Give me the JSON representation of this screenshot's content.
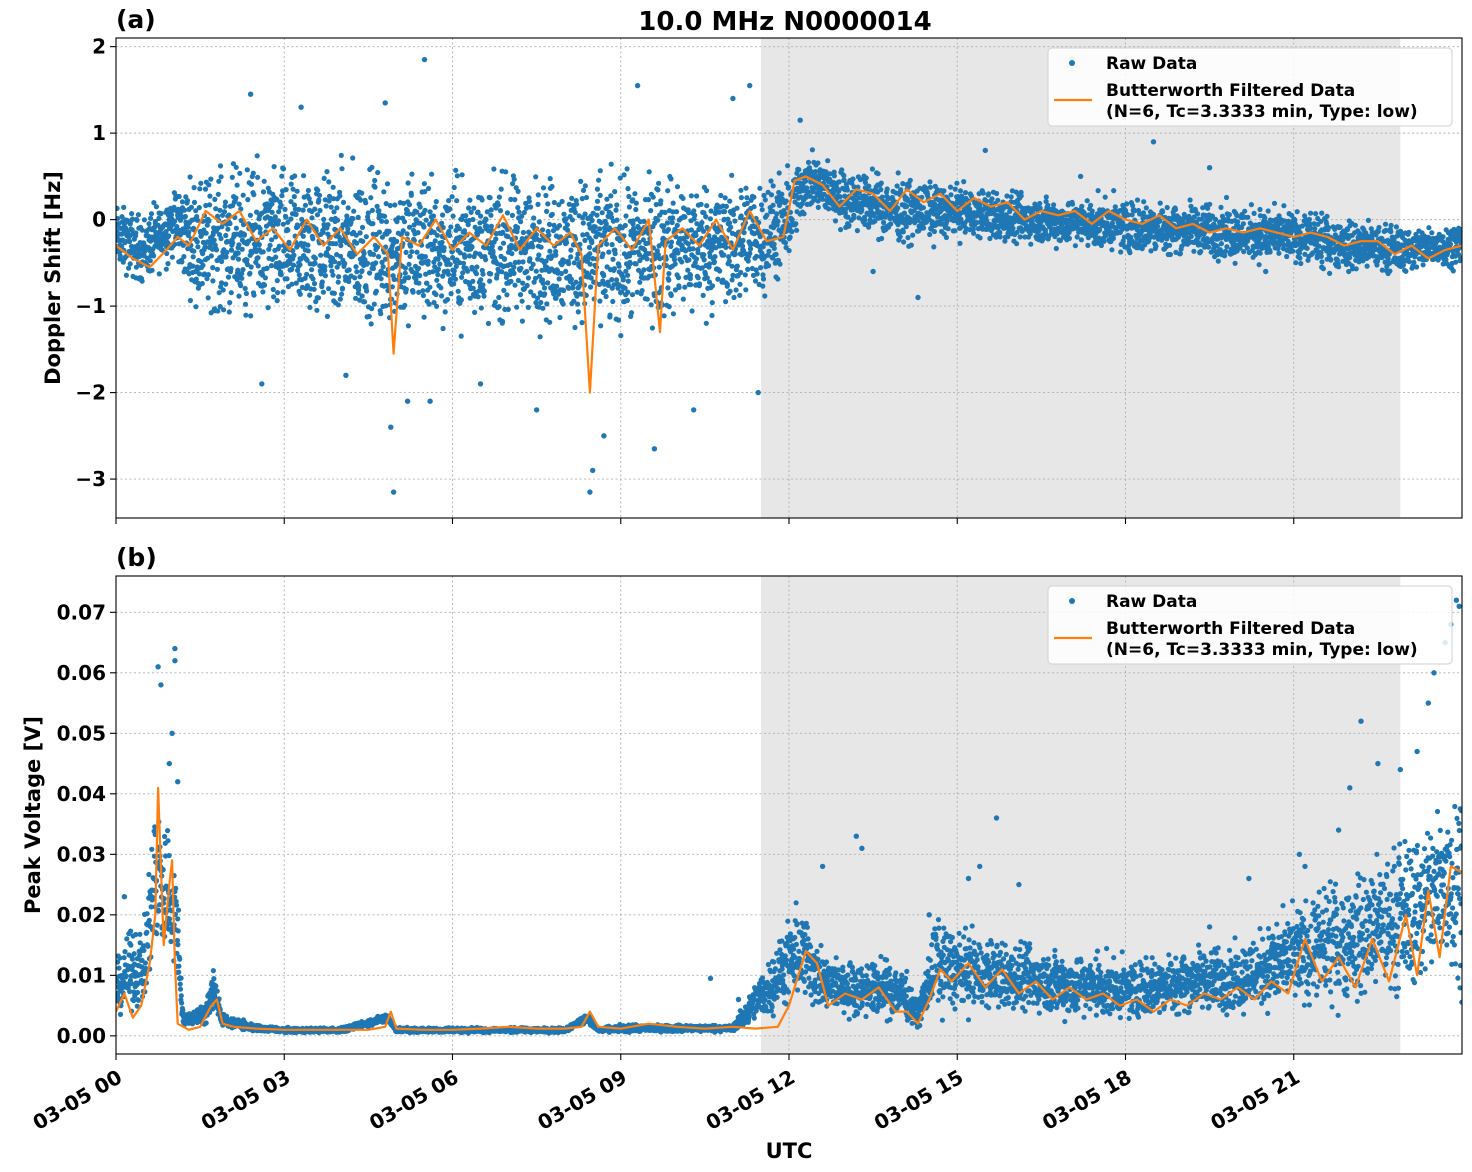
{
  "title": "10.0 MHz N0000014",
  "xlabel": "UTC",
  "x_tick_labels": [
    "03-05 00",
    "03-05 03",
    "03-05 06",
    "03-05 09",
    "03-05 12",
    "03-05 15",
    "03-05 18",
    "03-05 21"
  ],
  "colors": {
    "raw": "#1f77b4",
    "filtered": "#ff7f0e",
    "shade": "#e7e7e7"
  },
  "legend": {
    "raw_label": "Raw Data",
    "filtered_line1": "Butterworth Filtered Data",
    "filtered_line2": "(N=6, Tc=3.3333 min, Type: low)"
  },
  "chart_data": [
    {
      "type": "scatter",
      "panel_label": "(a)",
      "ylabel": "Doppler Shift [Hz]",
      "xlim_hours": [
        0,
        24
      ],
      "ylim": [
        -3.45,
        2.1
      ],
      "y_ticks": [
        -3,
        -2,
        -1,
        0,
        1,
        2
      ],
      "y_tick_labels": [
        "−3",
        "−2",
        "−1",
        "0",
        "1",
        "2"
      ],
      "grid": true,
      "legend_position": "top-right",
      "shaded_interval_hours": [
        11.5,
        22.9
      ],
      "series": [
        {
          "name": "Raw Data",
          "style": "points",
          "envelope": {
            "x": [
              0,
              0.5,
              1,
              1.5,
              2,
              3,
              4,
              5,
              6,
              7,
              8,
              9,
              10,
              11,
              11.9,
              12.3,
              13,
              14,
              15,
              16,
              17,
              18,
              19,
              20,
              21,
              22,
              23,
              24
            ],
            "low": [
              -0.7,
              -0.9,
              -0.6,
              -1.3,
              -1.4,
              -1.5,
              -1.5,
              -1.6,
              -1.5,
              -1.5,
              -1.5,
              -1.6,
              -1.4,
              -1.3,
              -0.9,
              0.0,
              -0.2,
              -0.4,
              -0.3,
              -0.4,
              -0.4,
              -0.5,
              -0.5,
              -0.6,
              -0.6,
              -0.7,
              -0.7,
              -0.6
            ],
            "high": [
              0.3,
              0.2,
              0.5,
              0.8,
              0.9,
              0.9,
              0.9,
              0.9,
              0.8,
              0.8,
              0.8,
              0.8,
              0.8,
              0.7,
              0.7,
              0.9,
              0.7,
              0.6,
              0.5,
              0.4,
              0.35,
              0.35,
              0.3,
              0.3,
              0.2,
              0.1,
              0.0,
              0.05
            ]
          },
          "outliers": [
            [
              2.4,
              1.45
            ],
            [
              2.6,
              -1.9
            ],
            [
              3.3,
              1.3
            ],
            [
              4.1,
              -1.8
            ],
            [
              4.8,
              1.35
            ],
            [
              4.95,
              -3.15
            ],
            [
              4.9,
              -2.4
            ],
            [
              5.2,
              -2.1
            ],
            [
              5.5,
              1.85
            ],
            [
              5.6,
              -2.1
            ],
            [
              6.5,
              -1.9
            ],
            [
              7.5,
              -2.2
            ],
            [
              8.5,
              -2.9
            ],
            [
              8.45,
              -3.15
            ],
            [
              8.7,
              -2.5
            ],
            [
              9.6,
              -2.65
            ],
            [
              9.3,
              1.55
            ],
            [
              10.3,
              -2.2
            ],
            [
              11.0,
              1.4
            ],
            [
              11.3,
              1.55
            ],
            [
              11.45,
              -2.0
            ],
            [
              12.2,
              1.15
            ],
            [
              13.5,
              -0.6
            ],
            [
              14.3,
              -0.9
            ],
            [
              15.5,
              0.8
            ],
            [
              17.2,
              0.5
            ],
            [
              18.5,
              0.9
            ],
            [
              19.5,
              0.6
            ],
            [
              20.5,
              -0.6
            ],
            [
              21.5,
              -0.55
            ]
          ]
        },
        {
          "name": "Butterworth Filtered Data",
          "style": "line",
          "x": [
            0,
            0.3,
            0.6,
            0.9,
            1.1,
            1.3,
            1.6,
            1.9,
            2.2,
            2.5,
            2.8,
            3.1,
            3.4,
            3.7,
            4.0,
            4.3,
            4.6,
            4.85,
            4.95,
            5.1,
            5.4,
            5.7,
            6.0,
            6.3,
            6.6,
            6.9,
            7.2,
            7.5,
            7.8,
            8.1,
            8.3,
            8.45,
            8.6,
            8.9,
            9.2,
            9.5,
            9.7,
            9.8,
            10.1,
            10.4,
            10.7,
            11.0,
            11.3,
            11.6,
            11.9,
            12.1,
            12.3,
            12.6,
            12.9,
            13.2,
            13.5,
            13.8,
            14.1,
            14.4,
            14.7,
            15.0,
            15.3,
            15.6,
            15.9,
            16.2,
            16.5,
            16.8,
            17.1,
            17.4,
            17.7,
            18.0,
            18.3,
            18.6,
            18.9,
            19.2,
            19.5,
            19.8,
            20.1,
            20.4,
            20.7,
            21.0,
            21.3,
            21.6,
            21.9,
            22.2,
            22.5,
            22.8,
            23.1,
            23.4,
            23.7,
            24.0
          ],
          "y": [
            -0.3,
            -0.45,
            -0.55,
            -0.35,
            -0.2,
            -0.3,
            0.1,
            -0.05,
            0.1,
            -0.25,
            -0.1,
            -0.35,
            0.0,
            -0.3,
            -0.1,
            -0.4,
            -0.2,
            -0.4,
            -1.55,
            -0.2,
            -0.3,
            0.0,
            -0.35,
            -0.15,
            -0.3,
            0.05,
            -0.35,
            -0.1,
            -0.3,
            -0.15,
            -0.4,
            -2.0,
            -0.3,
            -0.1,
            -0.35,
            0.0,
            -1.3,
            -0.25,
            -0.1,
            -0.3,
            0.0,
            -0.35,
            0.1,
            -0.25,
            -0.2,
            0.45,
            0.5,
            0.4,
            0.15,
            0.35,
            0.3,
            0.1,
            0.35,
            0.2,
            0.3,
            0.1,
            0.25,
            0.15,
            0.2,
            0.0,
            0.1,
            0.05,
            0.1,
            -0.05,
            0.1,
            0.0,
            -0.05,
            0.05,
            -0.1,
            -0.05,
            -0.15,
            -0.1,
            -0.15,
            -0.1,
            -0.15,
            -0.2,
            -0.15,
            -0.2,
            -0.3,
            -0.25,
            -0.25,
            -0.4,
            -0.3,
            -0.45,
            -0.35,
            -0.3
          ]
        }
      ]
    },
    {
      "type": "scatter",
      "panel_label": "(b)",
      "ylabel": "Peak Voltage [V]",
      "xlim_hours": [
        0,
        24
      ],
      "ylim": [
        -0.003,
        0.076
      ],
      "y_ticks": [
        0.0,
        0.01,
        0.02,
        0.03,
        0.04,
        0.05,
        0.06,
        0.07
      ],
      "y_tick_labels": [
        "0.00",
        "0.01",
        "0.02",
        "0.03",
        "0.04",
        "0.05",
        "0.06",
        "0.07"
      ],
      "grid": true,
      "legend_position": "top-right",
      "shaded_interval_hours": [
        11.5,
        22.9
      ],
      "series": [
        {
          "name": "Raw Data",
          "style": "points",
          "envelope": {
            "x": [
              0,
              0.3,
              0.5,
              0.7,
              0.9,
              1.05,
              1.2,
              1.6,
              1.75,
              1.9,
              2.5,
              3,
              4,
              4.85,
              5.0,
              6,
              7,
              8,
              8.4,
              8.6,
              9,
              10,
              11,
              12.2,
              12.35,
              12.6,
              13,
              14,
              14.3,
              14.6,
              15,
              16,
              17,
              18,
              19,
              20,
              21,
              22,
              22.8,
              23.3,
              24
            ],
            "low": [
              0.002,
              0.002,
              0.003,
              0.01,
              0.008,
              0.003,
              0.0015,
              0.0015,
              0.003,
              0.001,
              0.0005,
              0.0004,
              0.0004,
              0.002,
              0.0004,
              0.0004,
              0.0004,
              0.0004,
              0.002,
              0.0004,
              0.0004,
              0.0005,
              0.0005,
              0.003,
              0.003,
              0.002,
              0.002,
              0.001,
              0.001,
              0.002,
              0.002,
              0.002,
              0.001,
              0.001,
              0.002,
              0.002,
              0.002,
              0.002,
              0.003,
              0.004,
              0.004
            ],
            "high": [
              0.014,
              0.02,
              0.02,
              0.045,
              0.04,
              0.038,
              0.004,
              0.006,
              0.013,
              0.004,
              0.002,
              0.0015,
              0.0015,
              0.004,
              0.0015,
              0.0015,
              0.0015,
              0.0015,
              0.004,
              0.0015,
              0.002,
              0.002,
              0.002,
              0.025,
              0.022,
              0.015,
              0.014,
              0.014,
              0.006,
              0.022,
              0.02,
              0.017,
              0.016,
              0.014,
              0.016,
              0.017,
              0.024,
              0.03,
              0.035,
              0.04,
              0.05
            ]
          },
          "outliers": [
            [
              0.15,
              0.023
            ],
            [
              0.75,
              0.061
            ],
            [
              0.8,
              0.058
            ],
            [
              1.05,
              0.064
            ],
            [
              1.05,
              0.062
            ],
            [
              1.0,
              0.05
            ],
            [
              0.95,
              0.045
            ],
            [
              1.1,
              0.042
            ],
            [
              10.6,
              0.0095
            ],
            [
              11.1,
              0.006
            ],
            [
              12.6,
              0.028
            ],
            [
              13.2,
              0.033
            ],
            [
              13.3,
              0.031
            ],
            [
              14.5,
              0.02
            ],
            [
              15.2,
              0.026
            ],
            [
              15.4,
              0.028
            ],
            [
              15.7,
              0.036
            ],
            [
              16.1,
              0.025
            ],
            [
              17.5,
              0.014
            ],
            [
              19.5,
              0.018
            ],
            [
              20.2,
              0.026
            ],
            [
              21.1,
              0.03
            ],
            [
              21.2,
              0.028
            ],
            [
              21.8,
              0.034
            ],
            [
              22.0,
              0.041
            ],
            [
              22.2,
              0.052
            ],
            [
              22.5,
              0.045
            ],
            [
              22.9,
              0.044
            ],
            [
              23.2,
              0.047
            ],
            [
              23.5,
              0.06
            ],
            [
              23.7,
              0.065
            ],
            [
              23.9,
              0.072
            ],
            [
              23.95,
              0.071
            ],
            [
              23.8,
              0.068
            ],
            [
              23.4,
              0.055
            ]
          ]
        },
        {
          "name": "Butterworth Filtered Data",
          "style": "line",
          "x": [
            0,
            0.15,
            0.3,
            0.45,
            0.6,
            0.7,
            0.75,
            0.85,
            0.95,
            1.0,
            1.05,
            1.1,
            1.3,
            1.5,
            1.7,
            1.8,
            1.9,
            2.1,
            2.5,
            3.0,
            3.5,
            4.0,
            4.5,
            4.8,
            4.9,
            5.0,
            5.5,
            6.0,
            6.5,
            7.0,
            7.5,
            8.0,
            8.3,
            8.45,
            8.6,
            9.0,
            9.5,
            10.0,
            10.5,
            11.0,
            11.4,
            11.8,
            12.0,
            12.3,
            12.5,
            12.7,
            13.0,
            13.3,
            13.6,
            13.9,
            14.1,
            14.3,
            14.5,
            14.7,
            14.9,
            15.2,
            15.5,
            15.8,
            16.1,
            16.4,
            16.7,
            17.0,
            17.3,
            17.6,
            17.9,
            18.2,
            18.5,
            18.8,
            19.1,
            19.4,
            19.7,
            20.0,
            20.3,
            20.6,
            20.9,
            21.2,
            21.5,
            21.8,
            22.1,
            22.4,
            22.7,
            23.0,
            23.2,
            23.4,
            23.6,
            23.8,
            24.0
          ],
          "y": [
            0.004,
            0.007,
            0.003,
            0.005,
            0.012,
            0.02,
            0.041,
            0.015,
            0.025,
            0.029,
            0.012,
            0.002,
            0.001,
            0.0015,
            0.005,
            0.006,
            0.002,
            0.0015,
            0.0012,
            0.001,
            0.001,
            0.001,
            0.001,
            0.0015,
            0.004,
            0.0012,
            0.001,
            0.001,
            0.0012,
            0.0015,
            0.0012,
            0.0012,
            0.0015,
            0.004,
            0.0015,
            0.0012,
            0.002,
            0.0015,
            0.0012,
            0.0015,
            0.0012,
            0.0015,
            0.005,
            0.014,
            0.012,
            0.005,
            0.007,
            0.006,
            0.008,
            0.004,
            0.004,
            0.002,
            0.006,
            0.011,
            0.009,
            0.012,
            0.008,
            0.011,
            0.007,
            0.009,
            0.006,
            0.008,
            0.006,
            0.007,
            0.005,
            0.006,
            0.004,
            0.006,
            0.005,
            0.007,
            0.006,
            0.008,
            0.006,
            0.009,
            0.007,
            0.016,
            0.009,
            0.013,
            0.008,
            0.016,
            0.009,
            0.02,
            0.01,
            0.024,
            0.013,
            0.028,
            0.027
          ]
        }
      ]
    }
  ]
}
